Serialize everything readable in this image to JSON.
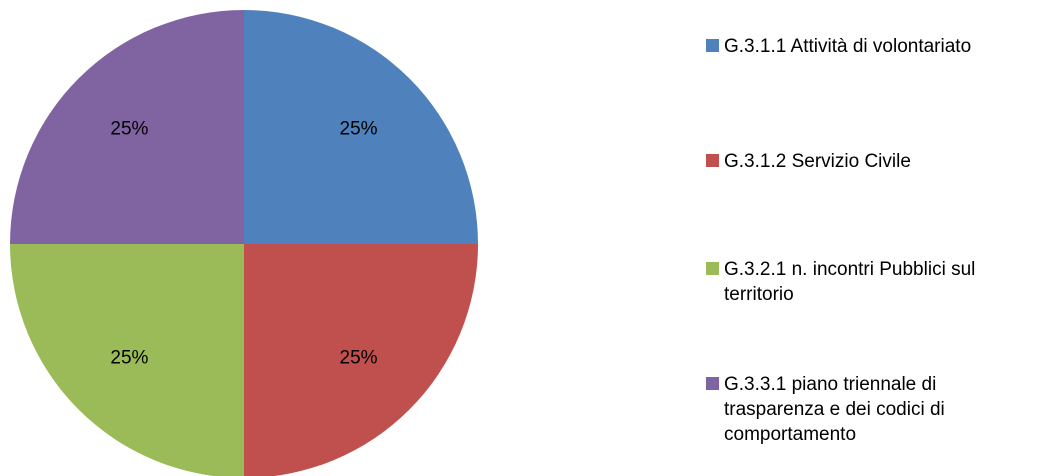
{
  "chart_data": {
    "type": "pie",
    "categories": [
      "G.3.1.1 Attività di volontariato",
      "G.3.1.2 Servizio Civile",
      "G.3.2.1 n. incontri Pubblici sul territorio",
      "G.3.3.1 piano triennale di trasparenza e dei codici di comportamento"
    ],
    "values": [
      25,
      25,
      25,
      25
    ],
    "data_labels": [
      "25%",
      "25%",
      "25%",
      "25%"
    ],
    "colors": [
      "#4F81BD",
      "#C0504D",
      "#9BBB59",
      "#8064A2"
    ],
    "start_angle": "12 o'clock",
    "direction": "clockwise",
    "legend": {
      "position": "right",
      "entries": [
        "G.3.1.1 Attività di volontariato",
        "G.3.1.2 Servizio Civile",
        "G.3.2.1 n. incontri Pubblici sul territorio",
        "G.3.3.1 piano triennale di trasparenza e dei codici di comportamento"
      ]
    }
  }
}
